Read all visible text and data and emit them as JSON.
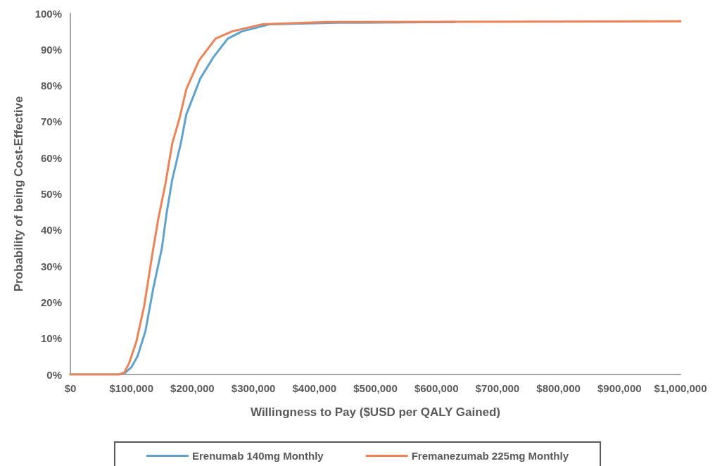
{
  "chart_data": {
    "type": "line",
    "xlabel": "Willingness to Pay ($USD per QALY Gained)",
    "ylabel": "Probability of being Cost-Effective",
    "xlim": [
      0,
      1000000
    ],
    "xticks": [
      {
        "value": 0,
        "label": "$0"
      },
      {
        "value": 100000,
        "label": "$100,000"
      },
      {
        "value": 200000,
        "label": "$200,000"
      },
      {
        "value": 300000,
        "label": "$300,000"
      },
      {
        "value": 400000,
        "label": "$400,000"
      },
      {
        "value": 500000,
        "label": "$500,000"
      },
      {
        "value": 600000,
        "label": "$600,000"
      },
      {
        "value": 700000,
        "label": "$700,000"
      },
      {
        "value": 800000,
        "label": "$800,000"
      },
      {
        "value": 900000,
        "label": "$900,000"
      },
      {
        "value": 1000000,
        "label": "$1,000,000"
      }
    ],
    "ylim": [
      0,
      100
    ],
    "yticks": [
      {
        "value": 0,
        "label": "0%"
      },
      {
        "value": 10,
        "label": "10%"
      },
      {
        "value": 20,
        "label": "20%"
      },
      {
        "value": 30,
        "label": "30%"
      },
      {
        "value": 40,
        "label": "40%"
      },
      {
        "value": 50,
        "label": "50%"
      },
      {
        "value": 60,
        "label": "60%"
      },
      {
        "value": 70,
        "label": "70%"
      },
      {
        "value": 80,
        "label": "80%"
      },
      {
        "value": 90,
        "label": "90%"
      },
      {
        "value": 100,
        "label": "100%"
      }
    ],
    "grid": false,
    "legend": "bottom",
    "marker": "none",
    "line_style": "solid",
    "series": [
      {
        "name": "Erenumab 140mg Monthly",
        "color": "#5ea3cf",
        "x": [
          0,
          80000,
          90000,
          100000,
          110000,
          123000,
          136000,
          150000,
          158000,
          167000,
          181000,
          190000,
          213000,
          235000,
          258000,
          281000,
          327000,
          439000,
          630000
        ],
        "values": [
          0,
          0,
          0.5,
          2,
          5,
          12,
          24,
          35,
          45,
          54,
          64,
          72,
          82,
          88,
          93,
          95,
          97,
          97.4,
          97.6
        ]
      },
      {
        "name": "Fremanezumab 225mg Monthly",
        "color": "#ed8257",
        "x": [
          0,
          80000,
          88000,
          96000,
          108000,
          121000,
          135000,
          144000,
          156000,
          167000,
          179000,
          190000,
          211000,
          238000,
          265000,
          315000,
          420000,
          1000000
        ],
        "values": [
          0,
          0,
          0.5,
          3,
          9,
          19,
          34,
          43,
          53,
          64,
          71,
          79,
          87,
          93,
          95,
          97,
          97.6,
          97.8
        ]
      }
    ]
  }
}
